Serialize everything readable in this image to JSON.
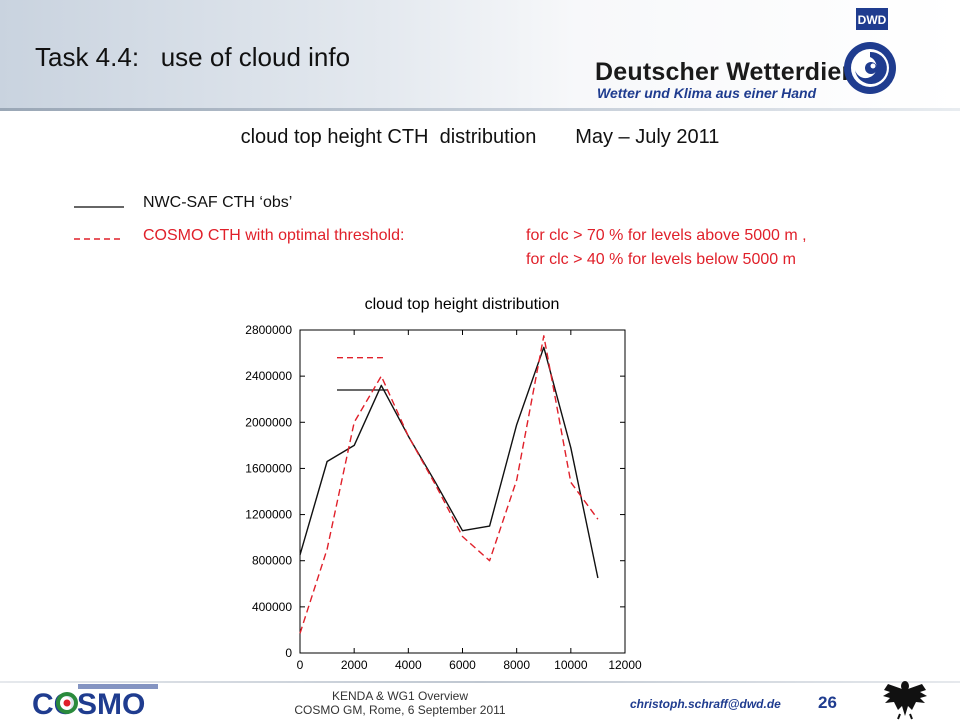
{
  "header": {
    "title": "Task 4.4:   use of cloud info",
    "org_name": "Deutscher Wetterdienst",
    "org_tagline": "Wetter und Klima aus einer Hand",
    "logo_text": "DWD"
  },
  "subtitle": "cloud top height CTH  distribution       May – July 2011",
  "legend": {
    "obs_label": "NWC-SAF CTH ‘obs’",
    "cosmo_label": "COSMO CTH with optimal threshold:",
    "cosmo_cond1": "for clc > 70 % for levels above 5000 m ,",
    "cosmo_cond2": "for clc > 40 % for levels below 5000 m"
  },
  "chart_data": {
    "type": "line",
    "title": "cloud top height distribution",
    "xlabel": "",
    "ylabel": "",
    "xlim": [
      0,
      12000
    ],
    "ylim": [
      0,
      2800000
    ],
    "xticks": [
      0,
      2000,
      4000,
      6000,
      8000,
      10000,
      12000
    ],
    "yticks": [
      0,
      400000,
      800000,
      1200000,
      1600000,
      2000000,
      2400000,
      2800000
    ],
    "grid": false,
    "legend_placement": "inside top-left (line samples only)",
    "series": [
      {
        "color": "#111111",
        "dash": "solid",
        "x": [
          0,
          1000,
          2000,
          3000,
          4000,
          5000,
          6000,
          7000,
          8000,
          9000,
          10000,
          11000
        ],
        "y": [
          850000,
          1660000,
          1800000,
          2320000,
          1880000,
          1480000,
          1060000,
          1100000,
          1980000,
          2650000,
          1780000,
          650000
        ]
      },
      {
        "color": "#e0202a",
        "dash": "dashed",
        "x": [
          0,
          1000,
          2000,
          3000,
          4000,
          5000,
          6000,
          7000,
          8000,
          9000,
          10000,
          11000
        ],
        "y": [
          170000,
          900000,
          2000000,
          2400000,
          1880000,
          1460000,
          1010000,
          800000,
          1500000,
          2750000,
          1480000,
          1160000
        ]
      }
    ],
    "legend_samples": [
      {
        "y": 2560000,
        "color": "#e0202a",
        "dash": "dashed"
      },
      {
        "y": 2280000,
        "color": "#111111",
        "dash": "solid"
      }
    ]
  },
  "footer": {
    "line1": "KENDA & WG1 Overview",
    "line2": "COSMO GM, Rome, 6 September 2011",
    "email": "christoph.schraff@dwd.de",
    "page": "26",
    "consortium_text": "COSMO"
  }
}
